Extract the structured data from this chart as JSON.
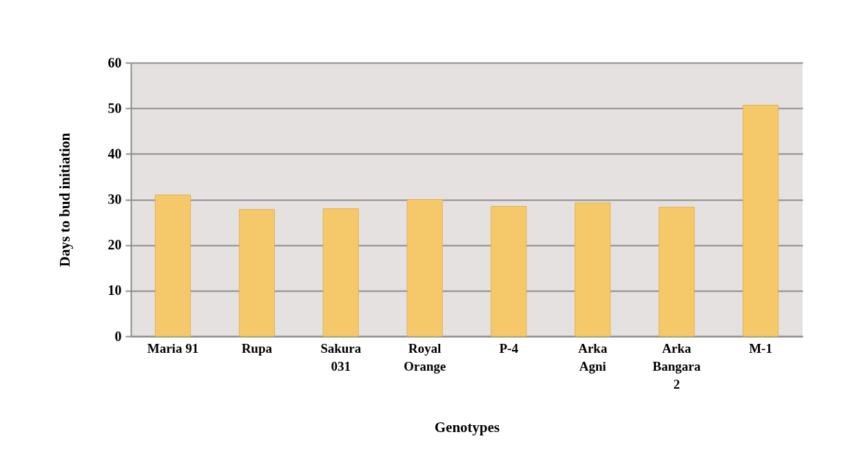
{
  "chart_data": {
    "type": "bar",
    "xlabel": "Genotypes",
    "ylabel": "Days to bud initiation",
    "categories": [
      "Maria 91",
      "Rupa",
      "Sakura 031",
      "Royal Orange",
      "P-4",
      "Arka Agni",
      "Arka Bangara 2",
      "M-1"
    ],
    "values": [
      31,
      27.8,
      28,
      30,
      28.5,
      29.3,
      28.3,
      50.7
    ],
    "color": "#f5c96a",
    "ylim": [
      0,
      60
    ],
    "yticks": [
      0,
      10,
      20,
      30,
      40,
      50,
      60
    ],
    "grid": "y"
  }
}
